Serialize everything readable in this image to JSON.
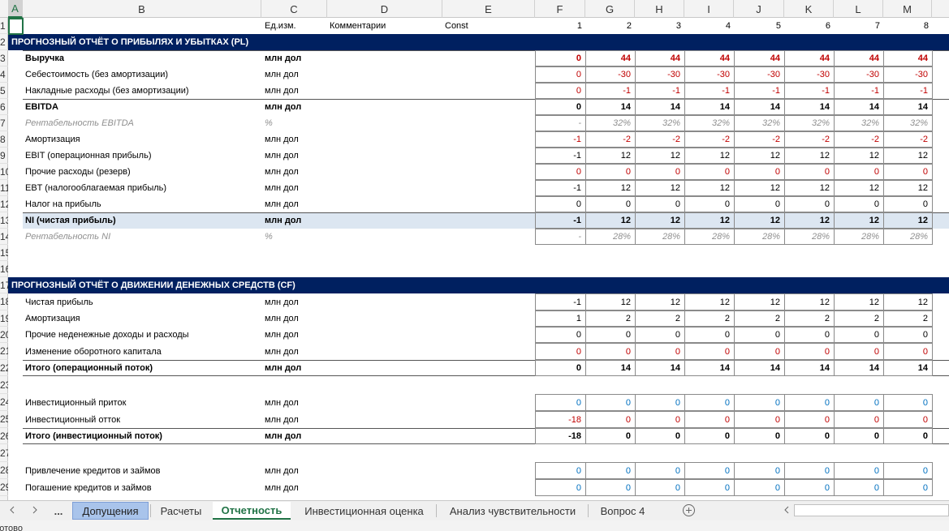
{
  "spreadsheet": {
    "column_headers": [
      "A",
      "B",
      "C",
      "D",
      "E",
      "F",
      "G",
      "H",
      "I",
      "J",
      "K",
      "L",
      "M"
    ],
    "rows": [
      {
        "num": "1",
        "unit": "Ед.изм.",
        "comment": "Комментарии",
        "const": "Const",
        "values": [
          "1",
          "2",
          "3",
          "4",
          "5",
          "6",
          "7",
          "8"
        ]
      },
      {
        "num": "2",
        "section": "ПРОГНОЗНЫЙ ОТЧЁТ О ПРИБЫЛЯХ И УБЫТКАХ (PL)"
      },
      {
        "num": "3",
        "label": "Выручка",
        "unit": "млн дол",
        "values": [
          "0",
          "44",
          "44",
          "44",
          "44",
          "44",
          "44",
          "44"
        ]
      },
      {
        "num": "4",
        "label": "Себестоимость (без амортизации)",
        "unit": "млн дол",
        "values": [
          "0",
          "-30",
          "-30",
          "-30",
          "-30",
          "-30",
          "-30",
          "-30"
        ]
      },
      {
        "num": "5",
        "label": "Накладные расходы (без амортизации)",
        "unit": "млн дол",
        "values": [
          "0",
          "-1",
          "-1",
          "-1",
          "-1",
          "-1",
          "-1",
          "-1"
        ]
      },
      {
        "num": "6",
        "label": "EBITDA",
        "unit": "млн дол",
        "values": [
          "0",
          "14",
          "14",
          "14",
          "14",
          "14",
          "14",
          "14"
        ]
      },
      {
        "num": "7",
        "label": "Рентабельность EBITDA",
        "unit": "%",
        "values": [
          "-",
          "32%",
          "32%",
          "32%",
          "32%",
          "32%",
          "32%",
          "32%"
        ]
      },
      {
        "num": "8",
        "label": "Амортизация",
        "unit": "млн дол",
        "values": [
          "-1",
          "-2",
          "-2",
          "-2",
          "-2",
          "-2",
          "-2",
          "-2"
        ]
      },
      {
        "num": "9",
        "label": "EBIT (операционная прибыль)",
        "unit": "млн дол",
        "values": [
          "-1",
          "12",
          "12",
          "12",
          "12",
          "12",
          "12",
          "12"
        ]
      },
      {
        "num": "10",
        "label": "Прочие расходы (резерв)",
        "unit": "млн дол",
        "values": [
          "0",
          "0",
          "0",
          "0",
          "0",
          "0",
          "0",
          "0"
        ]
      },
      {
        "num": "11",
        "label": "EBT (налогооблагаемая прибыль)",
        "unit": "млн дол",
        "values": [
          "-1",
          "12",
          "12",
          "12",
          "12",
          "12",
          "12",
          "12"
        ]
      },
      {
        "num": "12",
        "label": "Налог на прибыль",
        "unit": "млн дол",
        "values": [
          "0",
          "0",
          "0",
          "0",
          "0",
          "0",
          "0",
          "0"
        ]
      },
      {
        "num": "13",
        "label": "NI (чистая прибыль)",
        "unit": "млн дол",
        "values": [
          "-1",
          "12",
          "12",
          "12",
          "12",
          "12",
          "12",
          "12"
        ]
      },
      {
        "num": "14",
        "label": "Рентабельность NI",
        "unit": "%",
        "values": [
          "-",
          "28%",
          "28%",
          "28%",
          "28%",
          "28%",
          "28%",
          "28%"
        ]
      },
      {
        "num": "15"
      },
      {
        "num": "16"
      },
      {
        "num": "17",
        "section": "ПРОГНОЗНЫЙ ОТЧЁТ О ДВИЖЕНИИ ДЕНЕЖНЫХ СРЕДСТВ (CF)"
      },
      {
        "num": "18",
        "label": "Чистая прибыль",
        "unit": "млн дол",
        "values": [
          "-1",
          "12",
          "12",
          "12",
          "12",
          "12",
          "12",
          "12"
        ]
      },
      {
        "num": "19",
        "label": "Амортизация",
        "unit": "млн дол",
        "values": [
          "1",
          "2",
          "2",
          "2",
          "2",
          "2",
          "2",
          "2"
        ]
      },
      {
        "num": "20",
        "label": "Прочие неденежные доходы и расходы",
        "unit": "млн дол",
        "values": [
          "0",
          "0",
          "0",
          "0",
          "0",
          "0",
          "0",
          "0"
        ]
      },
      {
        "num": "21",
        "label": "Изменение оборотного капитала",
        "unit": "млн дол",
        "values": [
          "0",
          "0",
          "0",
          "0",
          "0",
          "0",
          "0",
          "0"
        ]
      },
      {
        "num": "22",
        "label": "Итого (операционный поток)",
        "unit": "млн дол",
        "values": [
          "0",
          "14",
          "14",
          "14",
          "14",
          "14",
          "14",
          "14"
        ]
      },
      {
        "num": "23"
      },
      {
        "num": "24",
        "label": "Инвестиционный приток",
        "unit": "млн дол",
        "values": [
          "0",
          "0",
          "0",
          "0",
          "0",
          "0",
          "0",
          "0"
        ]
      },
      {
        "num": "25",
        "label": "Инвестиционный отток",
        "unit": "млн дол",
        "values": [
          "-18",
          "0",
          "0",
          "0",
          "0",
          "0",
          "0",
          "0"
        ]
      },
      {
        "num": "26",
        "label": "Итого (инвестиционный поток)",
        "unit": "млн дол",
        "values": [
          "-18",
          "0",
          "0",
          "0",
          "0",
          "0",
          "0",
          "0"
        ]
      },
      {
        "num": "27"
      },
      {
        "num": "28",
        "label": "Привлечение кредитов и займов",
        "unit": "млн дол",
        "values": [
          "0",
          "0",
          "0",
          "0",
          "0",
          "0",
          "0",
          "0"
        ]
      },
      {
        "num": "29",
        "label": "Погашение кредитов и займов",
        "unit": "млн дол",
        "values": [
          "0",
          "0",
          "0",
          "0",
          "0",
          "0",
          "0",
          "0"
        ]
      }
    ]
  },
  "tabs": {
    "more": "...",
    "sheets": [
      "Допущения",
      "Расчеты",
      "Отчетность",
      "Инвестиционная оценка",
      "Анализ чувствительности",
      "Вопрос 4"
    ]
  },
  "status": "Готово"
}
